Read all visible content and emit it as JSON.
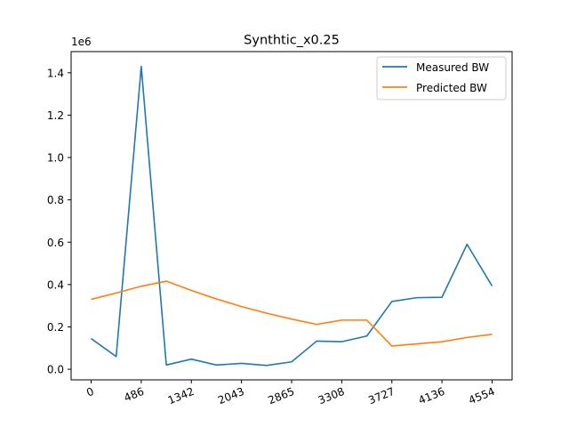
{
  "chart_data": {
    "type": "line",
    "title": "Synthtic_x0.25",
    "xlabel": "",
    "ylabel": "",
    "y_offset_label": "1e6",
    "ylim": [
      -50000,
      1500000
    ],
    "y_ticks": [
      0,
      200000,
      400000,
      600000,
      800000,
      1000000,
      1200000,
      1400000
    ],
    "y_tick_labels": [
      "0.0",
      "0.2",
      "0.4",
      "0.6",
      "0.8",
      "1.0",
      "1.2",
      "1.4"
    ],
    "x_tick_labels": [
      "0",
      "486",
      "1342",
      "2043",
      "2865",
      "3308",
      "3727",
      "4136",
      "4554"
    ],
    "legend_position": "top-right",
    "grid": false,
    "series": [
      {
        "name": "Measured BW",
        "color": "#1f77b4",
        "values": [
          145000,
          60000,
          1430000,
          20000,
          48000,
          20000,
          28000,
          18000,
          35000,
          133000,
          130000,
          157000,
          320000,
          338000,
          340000,
          590000,
          393000
        ]
      },
      {
        "name": "Predicted BW",
        "color": "#ff7f0e",
        "values": [
          330000,
          360000,
          392000,
          416000,
          372000,
          332000,
          296000,
          265000,
          237000,
          212000,
          232000,
          232000,
          110000,
          120000,
          130000,
          150000,
          165000
        ]
      }
    ]
  }
}
